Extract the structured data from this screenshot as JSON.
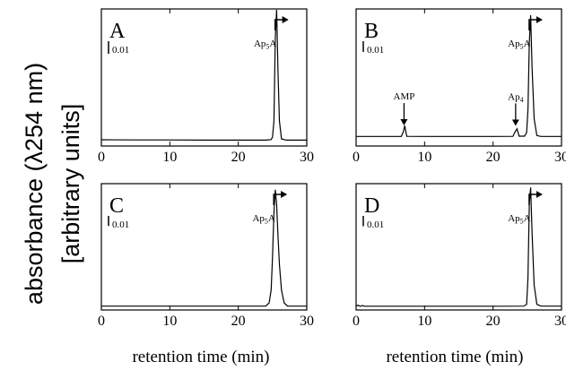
{
  "figure": {
    "ylabel_line1": "absorbance (λ254 nm)",
    "ylabel_line2": "[arbitrary units]",
    "xlabel_left": "retention time (min)",
    "xlabel_right": "retention time (min)"
  },
  "chart_data": [
    {
      "type": "line",
      "panel": "A",
      "xlabel": "retention time (min)",
      "ylabel": "absorbance (λ254 nm) [arbitrary units]",
      "xlim": [
        0,
        30
      ],
      "xticks": [
        "0",
        "10",
        "20",
        "30"
      ],
      "scale_bar": "0.01",
      "grid": false,
      "series": [
        {
          "x": [
            0,
            5,
            10,
            15,
            20,
            24.0,
            24.8,
            25.0,
            25.2,
            25.4,
            25.6,
            25.8,
            26.0,
            26.3,
            27,
            30
          ],
          "y": [
            0.0015,
            0.0014,
            0.0014,
            0.0013,
            0.0013,
            0.0013,
            0.0016,
            0.003,
            0.012,
            0.058,
            0.074,
            0.04,
            0.012,
            0.002,
            0.0013,
            0.0013
          ]
        }
      ],
      "peak_labels": [
        {
          "text": "Ap5A",
          "x": 25.5,
          "arrow": "bent"
        }
      ]
    },
    {
      "type": "line",
      "panel": "B",
      "xlabel": "retention time (min)",
      "ylabel": "absorbance (λ254 nm) [arbitrary units]",
      "xlim": [
        0,
        30
      ],
      "xticks": [
        "0",
        "10",
        "20",
        "30"
      ],
      "scale_bar": "0.01",
      "grid": false,
      "series": [
        {
          "x": [
            0,
            5,
            6.6,
            6.9,
            7.1,
            7.4,
            10,
            15,
            20,
            22.9,
            23.2,
            23.5,
            23.8,
            24.6,
            24.9,
            25.1,
            25.3,
            25.5,
            25.7,
            26.0,
            26.4,
            27,
            30
          ],
          "y": [
            0.0004,
            0.0004,
            0.0004,
            0.0035,
            0.0075,
            0.0005,
            0.0004,
            0.0004,
            0.0004,
            0.0005,
            0.0033,
            0.0055,
            0.0006,
            0.0006,
            0.003,
            0.018,
            0.062,
            0.08,
            0.045,
            0.012,
            0.001,
            0.0004,
            0.0004
          ]
        }
      ],
      "peak_labels": [
        {
          "text": "AMP",
          "x": 7.0,
          "arrow": "down"
        },
        {
          "text": "Ap4",
          "x": 23.3,
          "arrow": "down"
        },
        {
          "text": "Ap5A",
          "x": 25.4,
          "arrow": "bent"
        }
      ]
    },
    {
      "type": "line",
      "panel": "C",
      "xlabel": "retention time (min)",
      "ylabel": "absorbance (λ254 nm) [arbitrary units]",
      "xlim": [
        0,
        30
      ],
      "xticks": [
        "0",
        "10",
        "20",
        "30"
      ],
      "scale_bar": "0.01",
      "grid": false,
      "series": [
        {
          "x": [
            0,
            5,
            10,
            15,
            20,
            24.0,
            24.5,
            24.8,
            25.0,
            25.2,
            25.4,
            25.6,
            25.8,
            26.0,
            26.3,
            26.7,
            27.2,
            30
          ],
          "y": [
            0.0008,
            0.0008,
            0.0008,
            0.0008,
            0.0008,
            0.0009,
            0.003,
            0.012,
            0.035,
            0.066,
            0.082,
            0.072,
            0.05,
            0.03,
            0.012,
            0.003,
            0.0009,
            0.0008
          ]
        }
      ],
      "peak_labels": [
        {
          "text": "Ap5A",
          "x": 25.3,
          "arrow": "bent"
        }
      ]
    },
    {
      "type": "line",
      "panel": "D",
      "xlabel": "retention time (min)",
      "ylabel": "absorbance (λ254 nm) [arbitrary units]",
      "xlim": [
        0,
        30
      ],
      "xticks": [
        "0",
        "10",
        "20",
        "30"
      ],
      "scale_bar": "0.01",
      "grid": false,
      "series": [
        {
          "x": [
            0,
            0.3,
            0.6,
            0.9,
            1.2,
            2,
            5,
            10,
            15,
            20,
            24.5,
            24.9,
            25.1,
            25.3,
            25.5,
            25.7,
            26.0,
            26.4,
            27,
            30
          ],
          "y": [
            0.0008,
            0.0014,
            0.0006,
            0.0012,
            0.0007,
            0.0007,
            0.0007,
            0.0007,
            0.0007,
            0.0007,
            0.0008,
            0.002,
            0.02,
            0.07,
            0.081,
            0.05,
            0.015,
            0.002,
            0.0008,
            0.0008
          ]
        }
      ],
      "peak_labels": [
        {
          "text": "Ap5A",
          "x": 25.4,
          "arrow": "bent"
        }
      ]
    }
  ]
}
